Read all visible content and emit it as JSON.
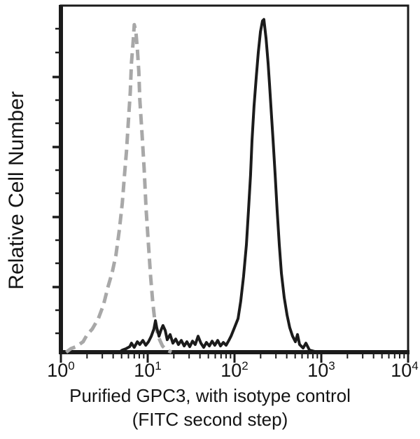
{
  "figure": {
    "kind": "flow cytometry overlay histogram"
  },
  "chart_data": {
    "type": "line",
    "subtype": "flow-cytometry-histogram",
    "title": "",
    "legend_position": "none",
    "grid": false,
    "x_axis": {
      "scale": "log10",
      "min": 1,
      "max": 10000,
      "ticks": [
        {
          "base": "10",
          "exp": "0"
        },
        {
          "base": "10",
          "exp": "1"
        },
        {
          "base": "10",
          "exp": "2"
        },
        {
          "base": "10",
          "exp": "3"
        },
        {
          "base": "10",
          "exp": "4"
        }
      ],
      "caption_line1": "Purified GPC3, with isotype control",
      "caption_line2": "(FITC second step)"
    },
    "y_axis": {
      "label": "Relative Cell Number",
      "min": 0,
      "max": 100,
      "tick_labels": "none"
    },
    "colors": {
      "frame": "#1b1b1b",
      "isotype": "#a8a8a8",
      "gpc3": "#1b1b1b"
    },
    "series": [
      {
        "name": "Isotype control",
        "style": "dashed",
        "color": "#a8a8a8",
        "peak_x": 7.0,
        "points": [
          [
            1.15,
            0
          ],
          [
            1.3,
            1
          ],
          [
            1.5,
            1.6
          ],
          [
            1.8,
            3
          ],
          [
            2.0,
            5
          ],
          [
            2.3,
            6.7
          ],
          [
            2.7,
            9.7
          ],
          [
            3.1,
            13.7
          ],
          [
            3.5,
            19
          ],
          [
            3.9,
            23
          ],
          [
            4.3,
            28
          ],
          [
            4.7,
            35
          ],
          [
            5.1,
            43
          ],
          [
            5.4,
            51
          ],
          [
            5.7,
            58
          ],
          [
            6.0,
            67
          ],
          [
            6.3,
            75
          ],
          [
            6.5,
            83.5
          ],
          [
            6.8,
            89.5
          ],
          [
            7.0,
            94.5
          ],
          [
            7.3,
            92.5
          ],
          [
            7.6,
            87.5
          ],
          [
            7.9,
            81
          ],
          [
            8.1,
            73
          ],
          [
            8.6,
            63
          ],
          [
            9.1,
            53
          ],
          [
            9.6,
            41
          ],
          [
            10.2,
            31
          ],
          [
            10.8,
            22
          ],
          [
            11.4,
            14.7
          ],
          [
            12.0,
            9.7
          ],
          [
            12.7,
            6.3
          ],
          [
            13.7,
            3.6
          ],
          [
            14.8,
            1.8
          ],
          [
            16.5,
            0.6
          ],
          [
            18.8,
            0
          ]
        ]
      },
      {
        "name": "Purified GPC3",
        "style": "solid",
        "color": "#1b1b1b",
        "peak_x": 215,
        "points": [
          [
            4.7,
            0
          ],
          [
            5.1,
            0.6
          ],
          [
            5.6,
            1
          ],
          [
            6.2,
            1.6
          ],
          [
            6.5,
            2.6
          ],
          [
            7.0,
            1.4
          ],
          [
            7.6,
            3
          ],
          [
            8.1,
            2.2
          ],
          [
            8.8,
            3.4
          ],
          [
            9.5,
            2
          ],
          [
            10.2,
            3
          ],
          [
            11.0,
            4.6
          ],
          [
            11.8,
            6.7
          ],
          [
            12.3,
            9.1
          ],
          [
            12.7,
            7.1
          ],
          [
            13.5,
            4.6
          ],
          [
            14.2,
            6.3
          ],
          [
            15.0,
            7.7
          ],
          [
            15.9,
            6.3
          ],
          [
            16.8,
            3.6
          ],
          [
            18.1,
            5.1
          ],
          [
            19.5,
            2.6
          ],
          [
            21,
            3.8
          ],
          [
            22.6,
            2.2
          ],
          [
            24.4,
            3.4
          ],
          [
            26.3,
            1.8
          ],
          [
            28.3,
            3
          ],
          [
            30.5,
            1.6
          ],
          [
            32.8,
            3.2
          ],
          [
            35.3,
            2.2
          ],
          [
            38.1,
            4.6
          ],
          [
            41,
            2.6
          ],
          [
            44.2,
            1.4
          ],
          [
            47.5,
            2.8
          ],
          [
            51.3,
            1.8
          ],
          [
            55.2,
            3.2
          ],
          [
            59.4,
            2
          ],
          [
            64,
            3.4
          ],
          [
            69,
            1.8
          ],
          [
            74.3,
            2.8
          ],
          [
            80,
            2
          ],
          [
            86.1,
            3.4
          ],
          [
            91.2,
            4.6
          ],
          [
            100,
            7.1
          ],
          [
            110,
            9.7
          ],
          [
            118,
            14.7
          ],
          [
            127,
            21.8
          ],
          [
            137,
            31
          ],
          [
            145,
            41
          ],
          [
            153,
            51
          ],
          [
            159,
            61
          ],
          [
            168,
            71
          ],
          [
            178,
            79.4
          ],
          [
            188,
            86.5
          ],
          [
            199,
            92.5
          ],
          [
            210,
            95.6
          ],
          [
            218,
            96
          ],
          [
            231,
            90.5
          ],
          [
            244,
            83.4
          ],
          [
            253,
            77.4
          ],
          [
            262,
            71.3
          ],
          [
            278,
            61.2
          ],
          [
            294,
            51.1
          ],
          [
            310,
            41
          ],
          [
            328,
            31
          ],
          [
            347,
            22.8
          ],
          [
            374,
            15.8
          ],
          [
            403,
            10.7
          ],
          [
            433,
            7.1
          ],
          [
            467,
            4.6
          ],
          [
            503,
            3
          ],
          [
            532,
            5.1
          ],
          [
            562,
            2.2
          ],
          [
            617,
            1.2
          ],
          [
            665,
            2.6
          ],
          [
            730,
            0.6
          ],
          [
            845,
            0.2
          ],
          [
            1020,
            0
          ]
        ]
      }
    ]
  }
}
